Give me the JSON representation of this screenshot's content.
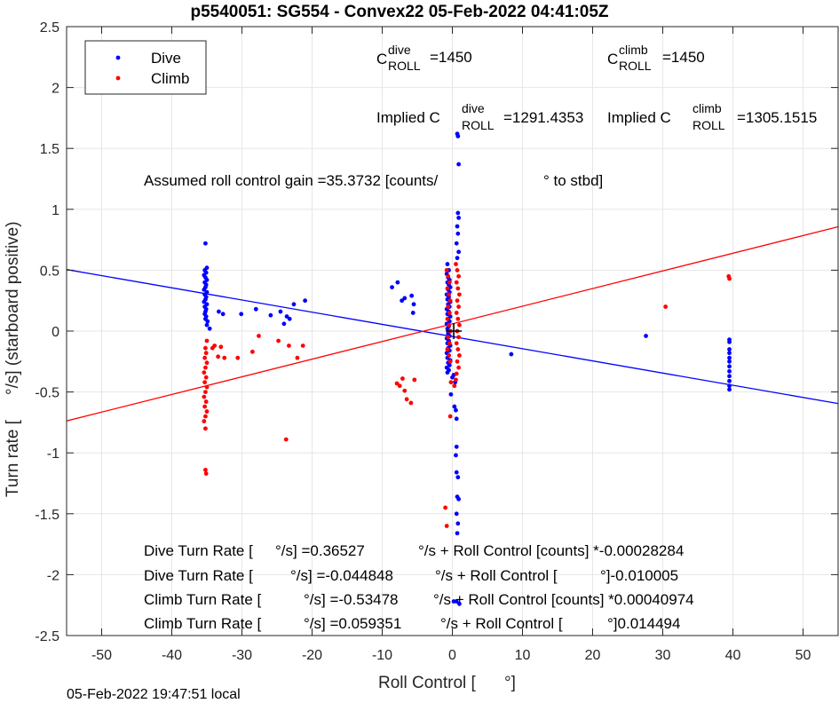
{
  "footer": "05-Feb-2022 19:47:51 local",
  "annotations": {
    "c_dive_prefix": "C",
    "c_dive_sup": "dive",
    "c_dive_sub": "ROLL",
    "c_dive_value": "=1450",
    "c_climb_prefix": "C",
    "c_climb_sup": "climb",
    "c_climb_sub": "ROLL",
    "c_climb_value": "=1450",
    "implied_dive_prefix": "Implied C",
    "implied_dive_sup": "dive",
    "implied_dive_sub": "ROLL",
    "implied_dive_value": "=1291.4353",
    "implied_climb_prefix": "Implied C",
    "implied_climb_sup": "climb",
    "implied_climb_sub": "ROLL",
    "implied_climb_value": "=1305.1515",
    "gain_text": "Assumed roll control gain =35.3732 [counts/",
    "gain_unit": "° to stbd]",
    "fit_lines": [
      {
        "a": "Dive Turn Rate [",
        "b": "°/s] =0.36527",
        "c": "°/s + Roll Control [counts] *-0.00028284"
      },
      {
        "a": "Dive Turn Rate [",
        "b": "°/s] =-0.044848",
        "c": "°/s + Roll Control [",
        "d": "°]-0.010005"
      },
      {
        "a": "Climb Turn Rate [",
        "b": "°/s] =-0.53478",
        "c": "°/s + Roll Control [counts] *0.00040974"
      },
      {
        "a": "Climb Turn Rate [",
        "b": "°/s] =0.059351",
        "c": "°/s + Roll Control [",
        "d": "°]0.014494"
      }
    ]
  },
  "chart_data": {
    "type": "scatter",
    "title": "p5540051: SG554 - Convex22 05-Feb-2022 04:41:05Z",
    "xlabel_a": "Roll Control [",
    "xlabel_b": "°]",
    "ylabel_a": "Turn rate [",
    "ylabel_b": "°/s] (starboard positive)",
    "xlim": [
      -55,
      55
    ],
    "ylim": [
      -2.5,
      2.5
    ],
    "xticks": [
      -50,
      -40,
      -30,
      -20,
      -10,
      0,
      10,
      20,
      30,
      40,
      50
    ],
    "yticks": [
      -2.5,
      -2,
      -1.5,
      -1,
      -0.5,
      0,
      0.5,
      1,
      1.5,
      2,
      2.5
    ],
    "ytick_labels": [
      "-2.5",
      "-2",
      "-1.5",
      "-1",
      "-0.5",
      "0",
      "0.5",
      "1",
      "1.5",
      "2",
      "2.5"
    ],
    "grid": true,
    "legend_position": "top-left",
    "colors": {
      "dive": "#0000ff",
      "climb": "#ff0000",
      "marker": "#000000"
    },
    "series": [
      {
        "name": "Dive",
        "color": "#0000ff",
        "points": [
          [
            -35.2,
            0.72
          ],
          [
            -35.0,
            0.52
          ],
          [
            -35.3,
            0.5
          ],
          [
            -35.1,
            0.48
          ],
          [
            -35.4,
            0.46
          ],
          [
            -35.2,
            0.44
          ],
          [
            -35.0,
            0.42
          ],
          [
            -35.3,
            0.4
          ],
          [
            -35.1,
            0.38
          ],
          [
            -35.2,
            0.36
          ],
          [
            -35.4,
            0.34
          ],
          [
            -35.0,
            0.32
          ],
          [
            -35.3,
            0.3
          ],
          [
            -35.1,
            0.28
          ],
          [
            -35.2,
            0.26
          ],
          [
            -35.4,
            0.24
          ],
          [
            -35.0,
            0.22
          ],
          [
            -35.3,
            0.2
          ],
          [
            -35.1,
            0.18
          ],
          [
            -35.2,
            0.16
          ],
          [
            -35.3,
            0.14
          ],
          [
            -35.1,
            0.12
          ],
          [
            -35.2,
            0.1
          ],
          [
            -34.9,
            0.08
          ],
          [
            -35.0,
            0.05
          ],
          [
            -34.6,
            0.02
          ],
          [
            -33.3,
            0.16
          ],
          [
            -32.7,
            0.14
          ],
          [
            -30.1,
            0.14
          ],
          [
            -28.0,
            0.18
          ],
          [
            -25.9,
            0.13
          ],
          [
            -24.5,
            0.16
          ],
          [
            -24.0,
            0.06
          ],
          [
            -23.6,
            0.12
          ],
          [
            -23.2,
            0.1
          ],
          [
            -22.6,
            0.22
          ],
          [
            -21.0,
            0.25
          ],
          [
            -8.6,
            0.36
          ],
          [
            -7.8,
            0.4
          ],
          [
            -7.2,
            0.25
          ],
          [
            -6.8,
            0.27
          ],
          [
            -5.8,
            0.29
          ],
          [
            -5.5,
            0.22
          ],
          [
            -5.6,
            0.15
          ],
          [
            0.7,
            1.62
          ],
          [
            0.8,
            1.6
          ],
          [
            0.9,
            1.37
          ],
          [
            0.8,
            0.97
          ],
          [
            0.9,
            0.93
          ],
          [
            0.7,
            0.86
          ],
          [
            0.8,
            0.8
          ],
          [
            0.6,
            0.72
          ],
          [
            0.9,
            0.65
          ],
          [
            0.7,
            0.6
          ],
          [
            -0.7,
            0.55
          ],
          [
            -0.5,
            0.5
          ],
          [
            -0.8,
            0.47
          ],
          [
            -0.6,
            0.44
          ],
          [
            -0.4,
            0.42
          ],
          [
            -0.7,
            0.4
          ],
          [
            -0.5,
            0.38
          ],
          [
            -0.3,
            0.36
          ],
          [
            -0.6,
            0.34
          ],
          [
            -0.4,
            0.32
          ],
          [
            -0.8,
            0.3
          ],
          [
            -0.5,
            0.28
          ],
          [
            -0.7,
            0.26
          ],
          [
            -0.3,
            0.24
          ],
          [
            -0.6,
            0.22
          ],
          [
            -0.4,
            0.2
          ],
          [
            -0.8,
            0.18
          ],
          [
            -0.5,
            0.16
          ],
          [
            -0.7,
            0.14
          ],
          [
            -0.3,
            0.12
          ],
          [
            -0.6,
            0.1
          ],
          [
            -0.4,
            0.08
          ],
          [
            -0.8,
            0.06
          ],
          [
            -0.5,
            0.04
          ],
          [
            -0.7,
            0.02
          ],
          [
            -0.3,
            0.0
          ],
          [
            -0.6,
            -0.02
          ],
          [
            -0.4,
            -0.04
          ],
          [
            -0.8,
            -0.06
          ],
          [
            -0.5,
            -0.08
          ],
          [
            -0.7,
            -0.1
          ],
          [
            -0.3,
            -0.12
          ],
          [
            -0.6,
            -0.14
          ],
          [
            -0.4,
            -0.16
          ],
          [
            -0.8,
            -0.18
          ],
          [
            -0.5,
            -0.2
          ],
          [
            -0.7,
            -0.22
          ],
          [
            -0.3,
            -0.24
          ],
          [
            -0.6,
            -0.26
          ],
          [
            -0.4,
            -0.28
          ],
          [
            -0.8,
            -0.3
          ],
          [
            -0.5,
            -0.32
          ],
          [
            -0.7,
            -0.34
          ],
          [
            0.2,
            -0.36
          ],
          [
            0.0,
            -0.38
          ],
          [
            0.4,
            -0.42
          ],
          [
            -0.2,
            -0.52
          ],
          [
            0.3,
            -0.62
          ],
          [
            0.5,
            -0.65
          ],
          [
            0.6,
            -0.72
          ],
          [
            0.6,
            -0.95
          ],
          [
            0.5,
            -1.02
          ],
          [
            0.6,
            -1.16
          ],
          [
            0.8,
            -1.2
          ],
          [
            0.7,
            -1.36
          ],
          [
            0.9,
            -1.38
          ],
          [
            0.6,
            -1.5
          ],
          [
            0.8,
            -1.58
          ],
          [
            0.7,
            -1.66
          ],
          [
            0.2,
            -2.22
          ],
          [
            0.6,
            -2.22
          ],
          [
            1.0,
            -2.24
          ],
          [
            8.4,
            -0.19
          ],
          [
            27.6,
            -0.04
          ],
          [
            39.5,
            -0.07
          ],
          [
            39.5,
            -0.09
          ],
          [
            39.5,
            -0.15
          ],
          [
            39.5,
            -0.18
          ],
          [
            39.5,
            -0.22
          ],
          [
            39.5,
            -0.25
          ],
          [
            39.5,
            -0.29
          ],
          [
            39.5,
            -0.33
          ],
          [
            39.5,
            -0.37
          ],
          [
            39.5,
            -0.41
          ],
          [
            39.5,
            -0.45
          ],
          [
            39.5,
            -0.48
          ]
        ]
      },
      {
        "name": "Climb",
        "color": "#ff0000",
        "points": [
          [
            -35.0,
            -0.08
          ],
          [
            -35.2,
            -0.14
          ],
          [
            -35.1,
            -0.18
          ],
          [
            -35.3,
            -0.22
          ],
          [
            -35.0,
            -0.26
          ],
          [
            -35.2,
            -0.3
          ],
          [
            -35.4,
            -0.34
          ],
          [
            -35.1,
            -0.38
          ],
          [
            -35.3,
            -0.42
          ],
          [
            -35.0,
            -0.46
          ],
          [
            -35.2,
            -0.5
          ],
          [
            -35.4,
            -0.54
          ],
          [
            -35.1,
            -0.58
          ],
          [
            -35.3,
            -0.62
          ],
          [
            -35.0,
            -0.66
          ],
          [
            -35.2,
            -0.7
          ],
          [
            -35.4,
            -0.74
          ],
          [
            -35.2,
            -0.8
          ],
          [
            -35.2,
            -1.14
          ],
          [
            -35.1,
            -1.17
          ],
          [
            -34.2,
            -0.14
          ],
          [
            -33.9,
            -0.12
          ],
          [
            -33.4,
            -0.21
          ],
          [
            -33.0,
            -0.13
          ],
          [
            -32.5,
            -0.22
          ],
          [
            -30.6,
            -0.22
          ],
          [
            -28.5,
            -0.17
          ],
          [
            -27.6,
            -0.04
          ],
          [
            -24.8,
            -0.08
          ],
          [
            -23.7,
            -0.89
          ],
          [
            -23.3,
            -0.12
          ],
          [
            -22.1,
            -0.22
          ],
          [
            -21.3,
            -0.12
          ],
          [
            -7.9,
            -0.43
          ],
          [
            -7.5,
            -0.45
          ],
          [
            -7.1,
            -0.39
          ],
          [
            -6.8,
            -0.49
          ],
          [
            -6.5,
            -0.56
          ],
          [
            -5.9,
            -0.59
          ],
          [
            -5.4,
            -0.4
          ],
          [
            -0.8,
            0.5
          ],
          [
            -0.6,
            0.45
          ],
          [
            -0.4,
            0.4
          ],
          [
            -0.7,
            0.35
          ],
          [
            -0.5,
            0.3
          ],
          [
            -0.3,
            0.25
          ],
          [
            -0.6,
            0.2
          ],
          [
            -0.4,
            0.15
          ],
          [
            -0.7,
            0.1
          ],
          [
            -0.5,
            0.05
          ],
          [
            -0.3,
            0.0
          ],
          [
            -0.6,
            -0.05
          ],
          [
            -0.4,
            -0.1
          ],
          [
            -0.7,
            -0.15
          ],
          [
            -0.5,
            -0.2
          ],
          [
            -0.3,
            -0.25
          ],
          [
            0.5,
            0.55
          ],
          [
            0.7,
            0.5
          ],
          [
            0.9,
            0.45
          ],
          [
            0.6,
            0.4
          ],
          [
            0.8,
            0.35
          ],
          [
            1.0,
            0.3
          ],
          [
            0.7,
            0.25
          ],
          [
            0.9,
            0.2
          ],
          [
            0.6,
            0.15
          ],
          [
            0.8,
            0.1
          ],
          [
            1.0,
            0.05
          ],
          [
            0.7,
            0.0
          ],
          [
            0.9,
            -0.05
          ],
          [
            0.6,
            -0.1
          ],
          [
            0.8,
            -0.15
          ],
          [
            1.0,
            -0.2
          ],
          [
            0.7,
            -0.25
          ],
          [
            0.9,
            -0.3
          ],
          [
            0.6,
            -0.35
          ],
          [
            0.5,
            -0.4
          ],
          [
            -0.2,
            -0.42
          ],
          [
            0.3,
            -0.45
          ],
          [
            -1.0,
            -1.45
          ],
          [
            -0.8,
            -1.6
          ],
          [
            -0.3,
            -0.7
          ],
          [
            30.4,
            0.2
          ],
          [
            39.4,
            0.45
          ],
          [
            39.5,
            0.43
          ]
        ]
      }
    ],
    "fits": [
      {
        "name": "Dive fit",
        "color": "#0000ff",
        "slope": -0.010005,
        "intercept": -0.044848
      },
      {
        "name": "Climb fit",
        "color": "#ff0000",
        "slope": 0.014494,
        "intercept": 0.059351
      }
    ],
    "marker": [
      0.2,
      0.0
    ]
  }
}
